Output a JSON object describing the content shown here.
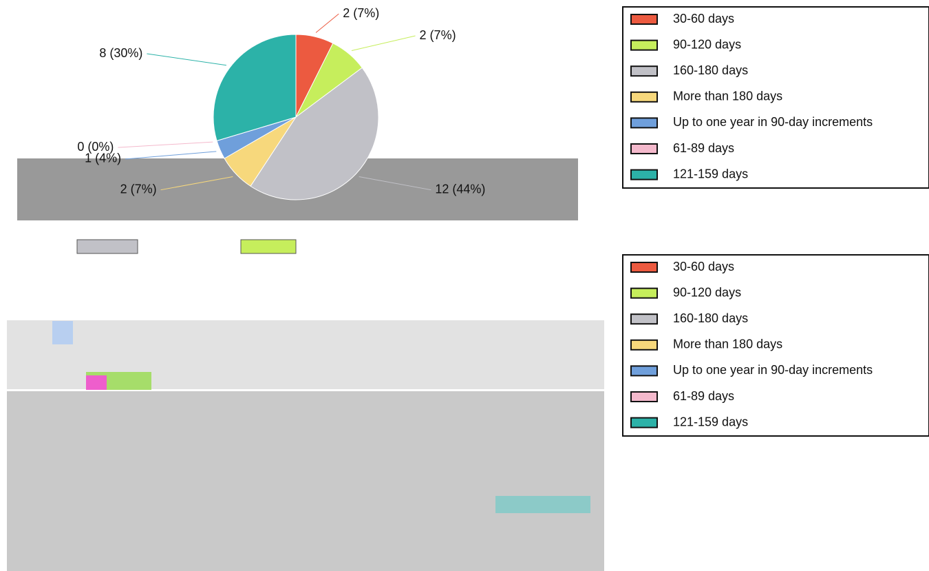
{
  "chart_data": [
    {
      "type": "pie",
      "categories": [
        "30-60 days",
        "90-120 days",
        "160-180 days",
        "More than 180 days",
        "Up to one year in 90-day increments",
        "61-89 days",
        "121-159 days"
      ],
      "values": [
        2,
        2,
        12,
        2,
        1,
        0,
        8
      ],
      "value_labels": [
        "2 (7%)",
        "2 (7%)",
        "12 (44%)",
        "2 (7%)",
        "1 (4%)",
        "0 (0%)",
        "8 (30%)"
      ],
      "colors": [
        "#ec5a40",
        "#c6ee5c",
        "#c1c1c7",
        "#f7d87c",
        "#6f9fdb",
        "#f4b9cc",
        "#2cb2a8"
      ]
    },
    {
      "type": "map",
      "categories": [
        "30-60 days",
        "90-120 days",
        "160-180 days",
        "More than 180 days",
        "Up to one year in 90-day increments",
        "61-89 days",
        "121-159 days"
      ],
      "colors": [
        "#ec5a40",
        "#c6ee5c",
        "#c1c1c7",
        "#f7d87c",
        "#6f9fdb",
        "#f4b9cc",
        "#2cb2a8"
      ]
    }
  ]
}
